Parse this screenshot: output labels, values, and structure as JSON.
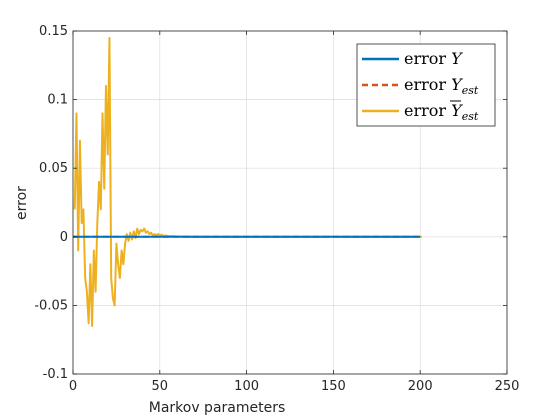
{
  "chart_data": {
    "type": "line",
    "xlabel": "Markov parameters",
    "ylabel": "error",
    "xlim": [
      0,
      250
    ],
    "ylim": [
      -0.1,
      0.15
    ],
    "xticks": [
      0,
      50,
      100,
      150,
      200,
      250
    ],
    "xtick_labels": [
      "0",
      "50",
      "100",
      "150",
      "200",
      "250"
    ],
    "yticks": [
      -0.1,
      -0.05,
      0,
      0.05,
      0.1,
      0.15
    ],
    "ytick_labels": [
      "-0.1",
      "-0.05",
      "0",
      "0.05",
      "0.1",
      "0.15"
    ],
    "grid": true,
    "legend_position": "top-right",
    "series": [
      {
        "name": "error Y",
        "name_parts": [
          "error ",
          "Y",
          "",
          ""
        ],
        "color": "#0072BD",
        "dash": "solid",
        "x": [
          0,
          10,
          20,
          30,
          40,
          50,
          60,
          70,
          80,
          90,
          100,
          110,
          120,
          130,
          140,
          150,
          160,
          170,
          180,
          190,
          200
        ],
        "y": [
          0,
          0,
          0,
          0,
          0,
          0,
          0,
          0,
          0,
          0,
          0,
          0,
          0,
          0,
          0,
          0,
          0,
          0,
          0,
          0,
          0
        ]
      },
      {
        "name": "error Y_est",
        "name_parts": [
          "error ",
          "Y",
          "est",
          ""
        ],
        "color": "#D95319",
        "dash": "dashed",
        "x": [
          0,
          10,
          20,
          30,
          40,
          50,
          60,
          70,
          80,
          90,
          100,
          110,
          120,
          130,
          140,
          150,
          160,
          170,
          180,
          190,
          200
        ],
        "y": [
          0,
          0,
          0,
          0,
          0,
          0,
          0,
          0,
          0,
          0,
          0,
          0,
          0,
          0,
          0,
          0,
          0,
          0,
          0,
          0,
          0
        ]
      },
      {
        "name": "error Ȳ_est",
        "name_parts": [
          "error ",
          "Y",
          "est",
          "bar"
        ],
        "color": "#EDB120",
        "dash": "solid",
        "x": [
          1,
          2,
          3,
          4,
          5,
          6,
          7,
          8,
          9,
          10,
          11,
          12,
          13,
          14,
          15,
          16,
          17,
          18,
          19,
          20,
          21,
          22,
          23,
          24,
          25,
          26,
          27,
          28,
          29,
          30,
          31,
          32,
          33,
          34,
          35,
          36,
          37,
          38,
          39,
          40,
          41,
          42,
          43,
          44,
          45,
          46,
          47,
          48,
          49,
          50,
          51,
          52,
          53,
          54,
          55,
          56,
          57,
          58,
          59,
          60,
          62,
          64,
          66,
          68,
          70,
          75,
          80,
          90,
          100,
          120,
          140,
          160,
          180,
          200,
          201
        ],
        "y": [
          0.02,
          0.09,
          -0.01,
          0.07,
          0.01,
          0.02,
          -0.03,
          -0.04,
          -0.063,
          -0.02,
          -0.065,
          -0.01,
          -0.04,
          0.01,
          0.04,
          0.02,
          0.09,
          0.035,
          0.11,
          0.06,
          0.145,
          -0.03,
          -0.045,
          -0.05,
          -0.005,
          -0.02,
          -0.03,
          -0.01,
          -0.02,
          -0.005,
          0.002,
          -0.003,
          0.003,
          -0.002,
          0.004,
          -0.001,
          0.006,
          0.002,
          0.005,
          0.004,
          0.006,
          0.003,
          0.004,
          0.002,
          0.003,
          0.001,
          0.002,
          0.001,
          0.002,
          0.001,
          0.0015,
          0.0005,
          0.001,
          0.0008,
          0.0005,
          0.0004,
          0.0006,
          0.0003,
          0.0004,
          0.0002,
          0.0002,
          0.0001,
          0.0001,
          0,
          0.0001,
          0,
          0,
          0,
          0,
          0,
          0,
          0,
          0,
          0,
          0
        ]
      }
    ]
  }
}
